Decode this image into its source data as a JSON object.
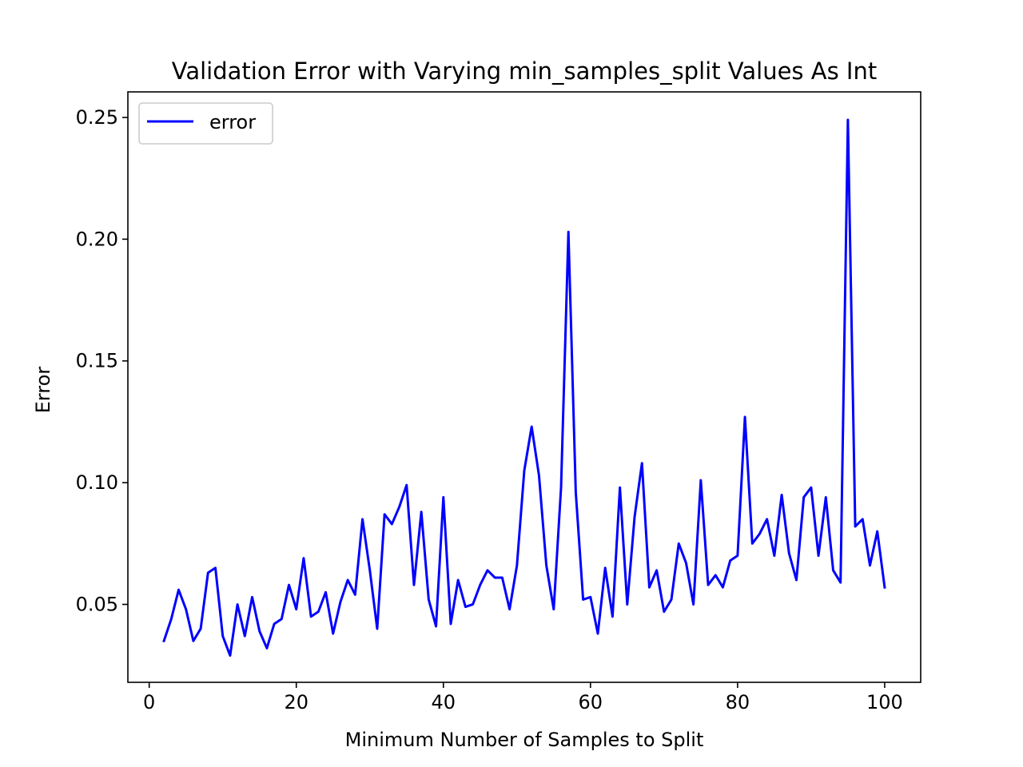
{
  "chart_data": {
    "type": "line",
    "title": "Validation Error with Varying min_samples_split Values As Int",
    "xlabel": "Minimum Number of Samples to Split",
    "ylabel": "Error",
    "xlim": [
      -2.9,
      104.9
    ],
    "ylim": [
      0.018,
      0.2605
    ],
    "xticks": [
      0,
      20,
      40,
      60,
      80,
      100
    ],
    "xtick_labels": [
      "0",
      "20",
      "40",
      "60",
      "80",
      "100"
    ],
    "yticks": [
      0.05,
      0.1,
      0.15,
      0.2,
      0.25
    ],
    "ytick_labels": [
      "0.05",
      "0.10",
      "0.15",
      "0.20",
      "0.25"
    ],
    "grid": false,
    "legend_position": "top-left",
    "series": [
      {
        "name": "error",
        "color": "#0000ff",
        "x": [
          2,
          3,
          4,
          5,
          6,
          7,
          8,
          9,
          10,
          11,
          12,
          13,
          14,
          15,
          16,
          17,
          18,
          19,
          20,
          21,
          22,
          23,
          24,
          25,
          26,
          27,
          28,
          29,
          30,
          31,
          32,
          33,
          34,
          35,
          36,
          37,
          38,
          39,
          40,
          41,
          42,
          43,
          44,
          45,
          46,
          47,
          48,
          49,
          50,
          51,
          52,
          53,
          54,
          55,
          56,
          57,
          58,
          59,
          60,
          61,
          62,
          63,
          64,
          65,
          66,
          67,
          68,
          69,
          70,
          71,
          72,
          73,
          74,
          75,
          76,
          77,
          78,
          79,
          80,
          81,
          82,
          83,
          84,
          85,
          86,
          87,
          88,
          89,
          90,
          91,
          92,
          93,
          94,
          95,
          96,
          97,
          98,
          99,
          100
        ],
        "values": [
          0.035,
          0.044,
          0.056,
          0.048,
          0.035,
          0.04,
          0.063,
          0.065,
          0.037,
          0.029,
          0.05,
          0.037,
          0.053,
          0.039,
          0.032,
          0.042,
          0.044,
          0.058,
          0.048,
          0.069,
          0.045,
          0.047,
          0.055,
          0.038,
          0.051,
          0.06,
          0.054,
          0.085,
          0.064,
          0.04,
          0.087,
          0.083,
          0.09,
          0.099,
          0.058,
          0.088,
          0.052,
          0.041,
          0.094,
          0.042,
          0.06,
          0.049,
          0.05,
          0.058,
          0.064,
          0.061,
          0.061,
          0.048,
          0.066,
          0.105,
          0.123,
          0.103,
          0.066,
          0.048,
          0.098,
          0.203,
          0.096,
          0.052,
          0.053,
          0.038,
          0.065,
          0.045,
          0.098,
          0.05,
          0.086,
          0.108,
          0.057,
          0.064,
          0.047,
          0.052,
          0.075,
          0.067,
          0.05,
          0.101,
          0.058,
          0.062,
          0.057,
          0.068,
          0.07,
          0.127,
          0.075,
          0.079,
          0.085,
          0.07,
          0.095,
          0.071,
          0.06,
          0.094,
          0.098,
          0.07,
          0.094,
          0.064,
          0.059,
          0.249,
          0.082,
          0.085,
          0.066,
          0.08,
          0.057
        ]
      }
    ]
  }
}
